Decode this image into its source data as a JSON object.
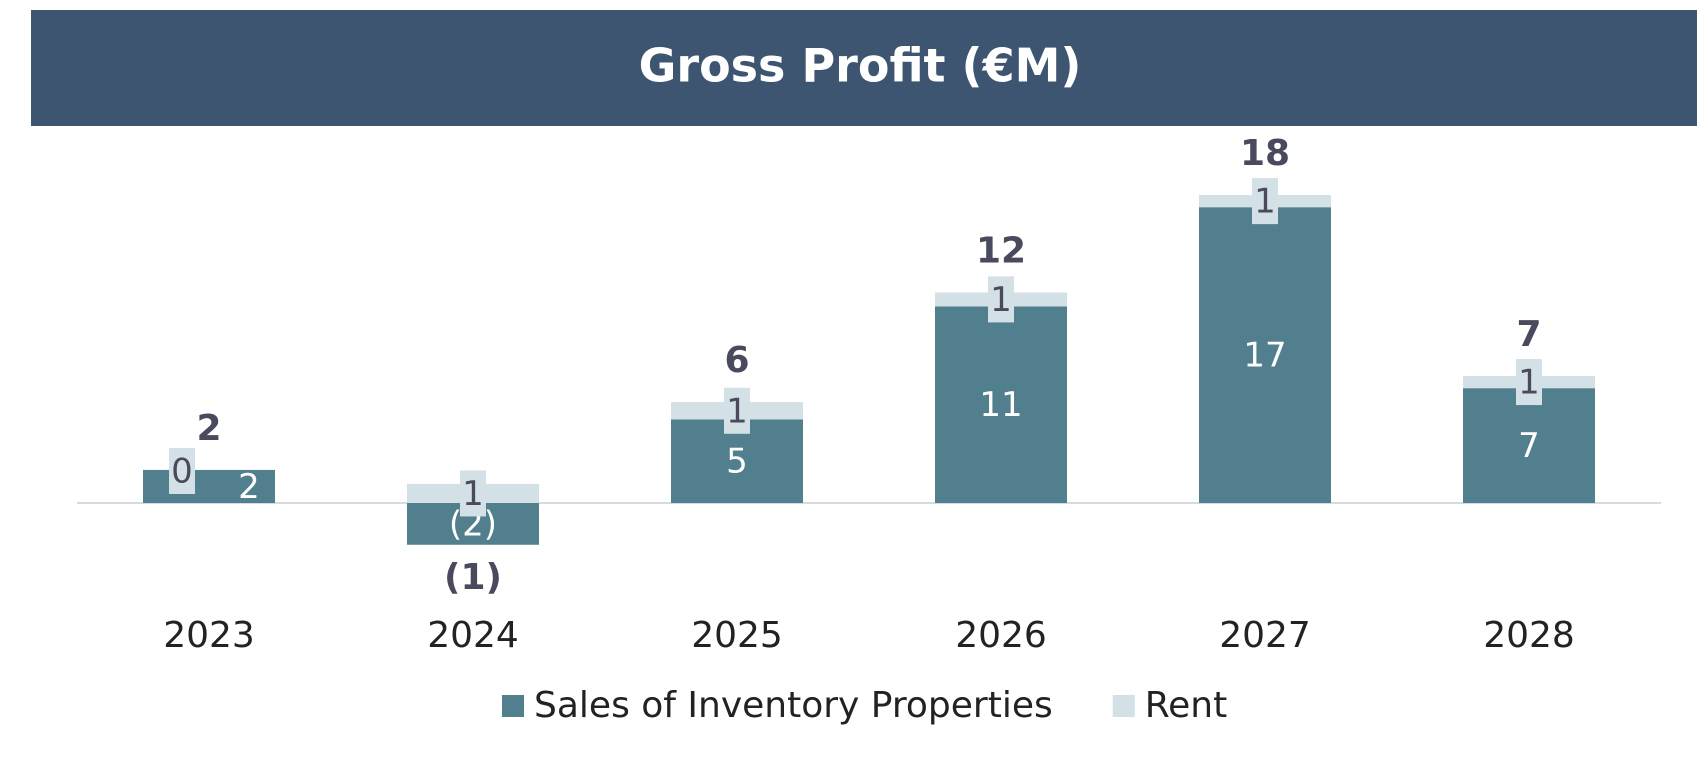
{
  "chart_data": {
    "type": "stacked_bar",
    "title": "Gross Profit (€M)",
    "categories": [
      "2023",
      "2024",
      "2025",
      "2026",
      "2027",
      "2028"
    ],
    "series": [
      {
        "name": "Sales of Inventory Properties",
        "color": "#527f8e",
        "values": [
          1.9,
          -2.4,
          4.8,
          11.3,
          17.0,
          6.6
        ],
        "value_labels": [
          "2",
          "(2)",
          "5",
          "11",
          "17",
          "7"
        ]
      },
      {
        "name": "Rent",
        "color": "#d3e0e6",
        "values": [
          0,
          1.1,
          1.0,
          0.8,
          0.7,
          0.7
        ],
        "value_labels": [
          "0",
          "1",
          "1",
          "1",
          "1",
          "1"
        ]
      }
    ],
    "totals": {
      "values": [
        1.9,
        -1.3,
        5.8,
        12.1,
        17.7,
        7.3
      ],
      "value_labels": [
        "2",
        "(1)",
        "6",
        "12",
        "18",
        "7"
      ]
    },
    "ylim": [
      -5,
      20
    ],
    "legend": "bottom"
  }
}
